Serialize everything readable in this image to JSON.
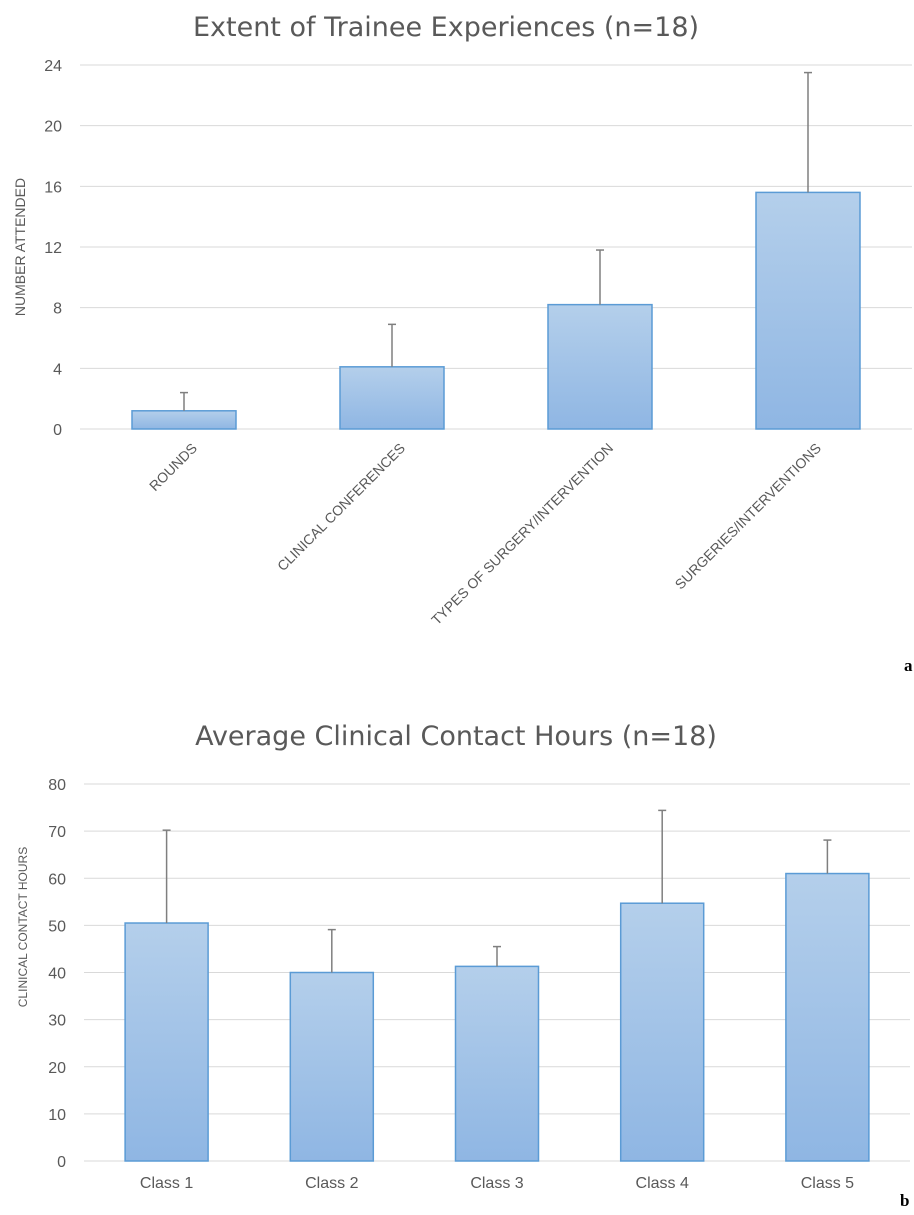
{
  "chart_data": [
    {
      "type": "bar",
      "title": "Extent of Trainee Experiences (n=18)",
      "ylabel": "NUMBER ATTENDED",
      "xlabel": "",
      "categories": [
        "ROUNDS",
        "CLINICAL CONFERENCES",
        "TYPES OF SURGERY/INTERVENTION",
        "SURGERIES/INTERVENTIONS"
      ],
      "values": [
        1.2,
        4.1,
        8.2,
        15.6
      ],
      "errors": [
        1.2,
        2.8,
        3.6,
        7.9
      ],
      "ylim": [
        0,
        24
      ],
      "yticks": [
        "0",
        "4",
        "8",
        "12",
        "16",
        "20",
        "24"
      ],
      "grid": true,
      "panel_label": "a",
      "bar_color": "#9dc3e6",
      "bar_border": "#5b9bd5"
    },
    {
      "type": "bar",
      "title": "Average Clinical Contact Hours (n=18)",
      "ylabel": "CLINICAL CONTACT HOURS",
      "xlabel": "",
      "categories": [
        "Class 1",
        "Class 2",
        "Class 3",
        "Class 4",
        "Class 5"
      ],
      "values": [
        50.5,
        40,
        41.3,
        54.7,
        61
      ],
      "errors": [
        19.7,
        9.1,
        4.2,
        19.7,
        7.1
      ],
      "ylim": [
        0,
        80
      ],
      "yticks": [
        "0",
        "10",
        "20",
        "30",
        "40",
        "50",
        "60",
        "70",
        "80"
      ],
      "grid": true,
      "panel_label": "b",
      "bar_color": "#9dc3e6",
      "bar_border": "#5b9bd5"
    }
  ]
}
